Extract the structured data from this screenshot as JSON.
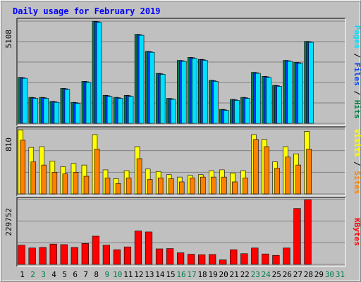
{
  "chart_data": {
    "type": "bar",
    "title": "Daily usage for February 2019",
    "x": [
      1,
      2,
      3,
      4,
      5,
      6,
      7,
      8,
      9,
      10,
      11,
      12,
      13,
      14,
      15,
      16,
      17,
      18,
      19,
      20,
      21,
      22,
      23,
      24,
      25,
      26,
      27,
      28,
      29,
      30,
      31
    ],
    "weekend_days": [
      2,
      3,
      9,
      10,
      16,
      17,
      23,
      24,
      30,
      31
    ],
    "panels": [
      {
        "name": "hits-files-pages",
        "max_label": "5108",
        "ylim": [
          0,
          5108
        ],
        "legend": [
          {
            "text": "Hits",
            "color": "#008040"
          },
          {
            "text": " / ",
            "color": "#000000"
          },
          {
            "text": "Files",
            "color": "#0040ff"
          },
          {
            "text": " / ",
            "color": "#000000"
          },
          {
            "text": "Pages",
            "color": "#00e0ff"
          }
        ],
        "series": [
          {
            "name": "Hits",
            "color": "#008040",
            "values": [
              2300,
              1300,
              1300,
              1100,
              1750,
              1050,
              2100,
              5100,
              1400,
              1300,
              1400,
              4450,
              3600,
              2500,
              1250,
              3150,
              3300,
              3200,
              2150,
              700,
              1200,
              1300,
              2550,
              2350,
              1900,
              3150,
              3050,
              4100,
              0,
              0,
              0
            ]
          },
          {
            "name": "Files",
            "color": "#0040ff",
            "values": [
              2280,
              1280,
              1280,
              1080,
              1730,
              1030,
              2080,
              5080,
              1380,
              1280,
              1380,
              4430,
              3580,
              2480,
              1230,
              3130,
              3280,
              3180,
              2130,
              680,
              1180,
              1280,
              2530,
              2330,
              1880,
              3130,
              3030,
              4080,
              0,
              0,
              0
            ]
          },
          {
            "name": "Pages",
            "color": "#00e0ff",
            "values": [
              2250,
              1250,
              1250,
              1050,
              1700,
              1000,
              2050,
              5050,
              1350,
              1250,
              1350,
              4400,
              3550,
              2450,
              1200,
              3100,
              3250,
              3150,
              2100,
              650,
              1150,
              1250,
              2500,
              2300,
              1850,
              3100,
              3000,
              4050,
              0,
              0,
              0
            ]
          }
        ]
      },
      {
        "name": "visits-sites",
        "max_label": "810",
        "ylim": [
          0,
          810
        ],
        "legend": [
          {
            "text": "Sites",
            "color": "#ff8000"
          },
          {
            "text": " / ",
            "color": "#000000"
          },
          {
            "text": "Visits",
            "color": "#ffff00"
          }
        ],
        "series": [
          {
            "name": "Visits",
            "color": "#ffff00",
            "values": [
              800,
              580,
              590,
              410,
              340,
              380,
              360,
              740,
              300,
              190,
              290,
              590,
              310,
              280,
              240,
              210,
              230,
              240,
              290,
              300,
              260,
              290,
              740,
              680,
              400,
              590,
              500,
              780,
              0,
              0,
              0
            ]
          },
          {
            "name": "Sites",
            "color": "#ff8000",
            "values": [
              670,
              400,
              360,
              270,
              250,
              270,
              220,
              560,
              200,
              130,
              200,
              440,
              180,
              200,
              190,
              150,
              200,
              210,
              210,
              210,
              150,
              200,
              680,
              590,
              320,
              460,
              360,
              560,
              0,
              0,
              0
            ]
          }
        ]
      },
      {
        "name": "kbytes",
        "max_label": "229752",
        "ylim": [
          0,
          229752
        ],
        "legend": [
          {
            "text": "KBytes",
            "color": "#ff0000"
          }
        ],
        "series": [
          {
            "name": "KBytes",
            "color": "#ff0000",
            "values": [
              68000,
              58000,
              60000,
              72000,
              70000,
              60000,
              74000,
              100000,
              68000,
              52000,
              62000,
              118000,
              115000,
              55000,
              56000,
              41000,
              36000,
              34000,
              35000,
              16000,
              52000,
              38000,
              58000,
              37000,
              32000,
              58000,
              198000,
              229000,
              0,
              0,
              0
            ]
          }
        ]
      }
    ]
  }
}
